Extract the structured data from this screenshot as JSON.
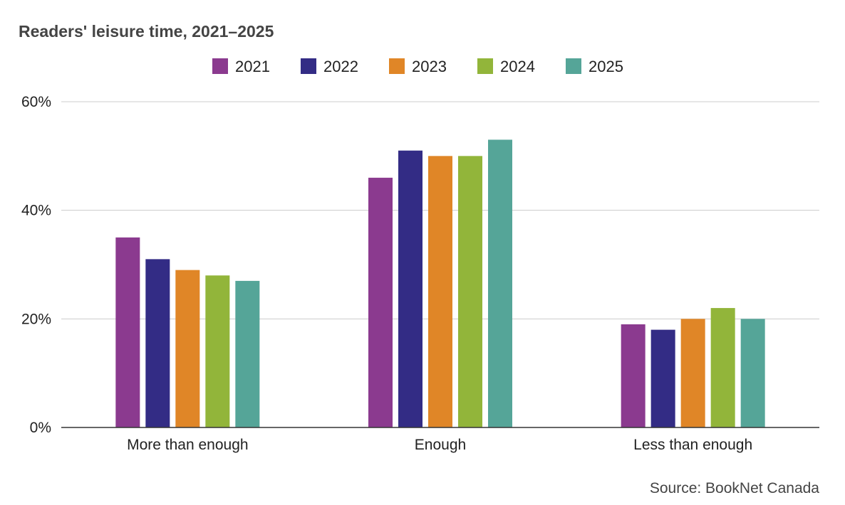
{
  "chart_data": {
    "type": "bar",
    "title": "Readers' leisure time, 2021–2025",
    "xlabel": "",
    "ylabel": "",
    "categories": [
      "More than enough",
      "Enough",
      "Less than enough"
    ],
    "series": [
      {
        "name": "2021",
        "color": "#8b3a8f",
        "values": [
          35,
          46,
          19
        ]
      },
      {
        "name": "2022",
        "color": "#332c85",
        "values": [
          31,
          51,
          18
        ]
      },
      {
        "name": "2023",
        "color": "#e08627",
        "values": [
          29,
          50,
          20
        ]
      },
      {
        "name": "2024",
        "color": "#92b53a",
        "values": [
          28,
          50,
          22
        ]
      },
      {
        "name": "2025",
        "color": "#55a598",
        "values": [
          27,
          53,
          20
        ]
      }
    ],
    "ylim": [
      0,
      60
    ],
    "yticks": [
      0,
      20,
      40,
      60
    ],
    "ytick_labels": [
      "0%",
      "20%",
      "40%",
      "60%"
    ],
    "grid": true,
    "legend_position": "top-center",
    "source": "Source: BookNet Canada"
  }
}
